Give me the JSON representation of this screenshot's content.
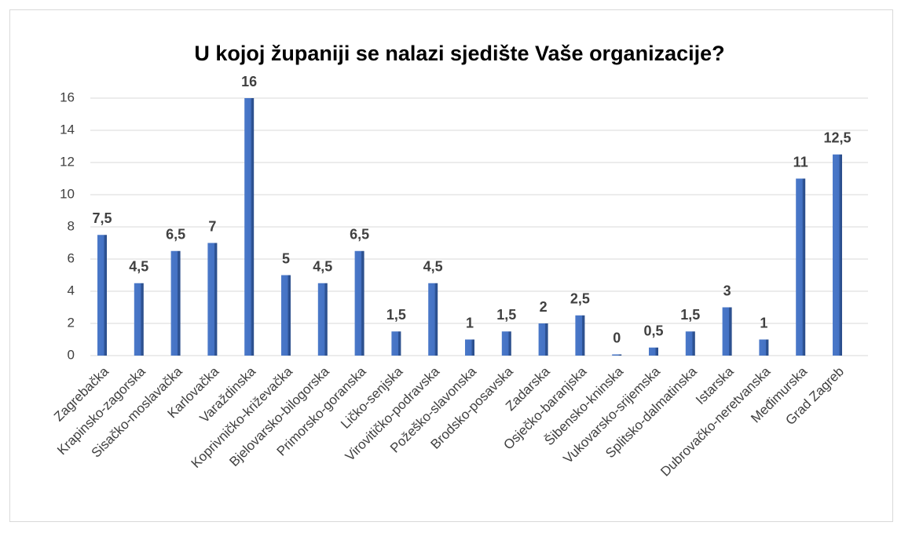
{
  "chart_data": {
    "type": "bar",
    "title": "U kojoj županiji se nalazi sjedište Vaše organizacije?",
    "categories": [
      "Zagrebačka",
      "Krapinsko-zagorska",
      "Sisačko-moslavačka",
      "Karlovačka",
      "Varaždinska",
      "Koprivničko-križevačka",
      "Bjelovarsko-bilogorska",
      "Primorsko-goranska",
      "Ličko-senjska",
      "Virovitičko-podravska",
      "Požeško-slavonska",
      "Brodsko-posavska",
      "Zadarska",
      "Osječko-baranjska",
      "Šibensko-kninska",
      "Vukovarsko-srijemska",
      "Splitsko-dalmatinska",
      "Istarska",
      "Dubrovačko-neretvanska",
      "Međimurska",
      "Grad Zagreb"
    ],
    "values": [
      7.5,
      4.5,
      6.5,
      7,
      16,
      5,
      4.5,
      6.5,
      1.5,
      4.5,
      1,
      1.5,
      2,
      2.5,
      0,
      0.5,
      1.5,
      3,
      1,
      11,
      12.5
    ],
    "value_labels": [
      "7,5",
      "4,5",
      "6,5",
      "7",
      "16",
      "5",
      "4,5",
      "6,5",
      "1,5",
      "4,5",
      "1",
      "1,5",
      "2",
      "2,5",
      "0",
      "0,5",
      "1,5",
      "3",
      "1",
      "11",
      "12,5"
    ],
    "color": "#4472c4",
    "ylim": [
      0,
      16
    ],
    "yticks": [
      0,
      2,
      4,
      6,
      8,
      10,
      12,
      14,
      16
    ],
    "grid": true
  }
}
